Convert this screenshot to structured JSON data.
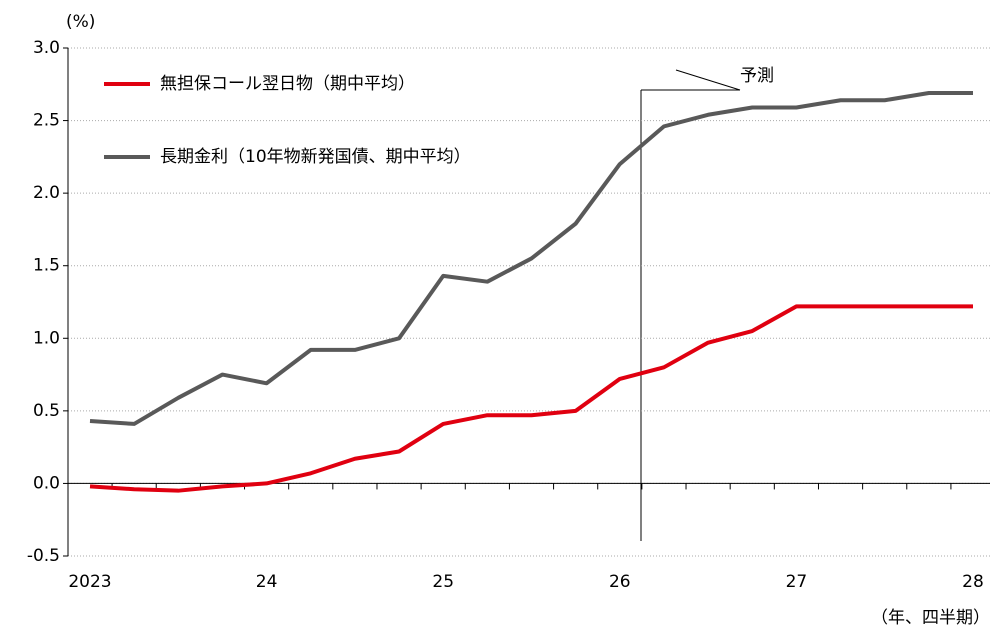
{
  "chart_data": {
    "type": "line",
    "y_label": "(%)",
    "x_label": "（年、四半期）",
    "annotation": "予測",
    "categories": [
      "2023",
      null,
      null,
      null,
      "24",
      null,
      null,
      null,
      "25",
      null,
      null,
      null,
      "26",
      null,
      null,
      null,
      "27",
      null,
      null,
      null,
      "28"
    ],
    "series": [
      {
        "name": "無担保コール翌日物（期中平均）",
        "color": "#e00010",
        "values": [
          -0.02,
          -0.04,
          -0.05,
          -0.02,
          0.0,
          0.07,
          0.17,
          0.22,
          0.41,
          0.47,
          0.47,
          0.5,
          0.72,
          0.8,
          0.97,
          1.05,
          1.22,
          1.22,
          1.22,
          1.22,
          1.22
        ]
      },
      {
        "name": "長期金利（10年物新発国債、期中平均）",
        "color": "#595959",
        "values": [
          0.43,
          0.41,
          0.59,
          0.75,
          0.69,
          0.92,
          0.92,
          1.0,
          1.43,
          1.39,
          1.55,
          1.79,
          2.2,
          2.46,
          2.54,
          2.59,
          2.59,
          2.64,
          2.64,
          2.69,
          2.69
        ]
      }
    ],
    "ylim": [
      -0.5,
      3.0
    ],
    "yticks": [
      {
        "value": -0.5,
        "label": "-0.5"
      },
      {
        "value": 0,
        "label": "0.0"
      },
      {
        "value": 0.5,
        "label": "0.5"
      },
      {
        "value": 1.0,
        "label": "1.0"
      },
      {
        "value": 1.5,
        "label": "1.5"
      },
      {
        "value": 2.0,
        "label": "2.0"
      },
      {
        "value": 2.5,
        "label": "2.5"
      },
      {
        "value": 3.0,
        "label": "3.0"
      }
    ],
    "grid": true
  }
}
